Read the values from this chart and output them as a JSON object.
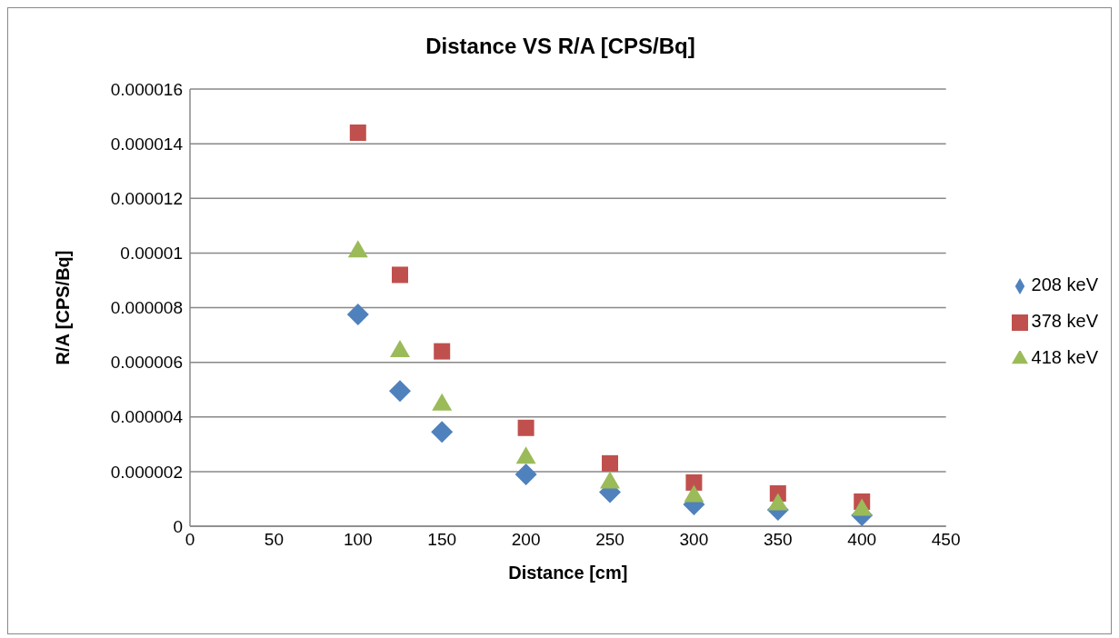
{
  "chart_data": {
    "type": "scatter",
    "title": "Distance VS R/A [CPS/Bq]",
    "xlabel": "Distance [cm]",
    "ylabel": "R/A  [CPS/Bq]",
    "x": [
      100,
      125,
      150,
      200,
      250,
      300,
      350,
      400
    ],
    "series": [
      {
        "name": "208 keV",
        "color": "#4f81bd",
        "marker": "diamond",
        "values": [
          7.75e-06,
          4.95e-06,
          3.45e-06,
          1.9e-06,
          1.25e-06,
          8e-07,
          6e-07,
          4e-07
        ]
      },
      {
        "name": "378 keV",
        "color": "#c0504d",
        "marker": "square",
        "values": [
          1.44e-05,
          9.2e-06,
          6.4e-06,
          3.6e-06,
          2.3e-06,
          1.6e-06,
          1.2e-06,
          9e-07
        ]
      },
      {
        "name": "418 keV",
        "color": "#9bbb59",
        "marker": "triangle",
        "values": [
          1.01e-05,
          6.45e-06,
          4.5e-06,
          2.55e-06,
          1.65e-06,
          1.15e-06,
          8.5e-07,
          6.5e-07
        ]
      }
    ],
    "xlim": [
      0,
      450
    ],
    "xticks": [
      0,
      50,
      100,
      150,
      200,
      250,
      300,
      350,
      400,
      450
    ],
    "ylim": [
      0,
      1.6e-05
    ],
    "yticks": [
      0,
      {
        "value": 2e-06,
        "label": "0.000002"
      },
      {
        "value": 4e-06,
        "label": "0.000004"
      },
      {
        "value": 6e-06,
        "label": "0.000006"
      },
      {
        "value": 8e-06,
        "label": "0.000008"
      },
      {
        "value": 1e-05,
        "label": "0.00001"
      },
      {
        "value": 1.2e-05,
        "label": "0.000012"
      },
      {
        "value": 1.4e-05,
        "label": "0.000014"
      },
      {
        "value": 1.6e-05,
        "label": "0.000016"
      }
    ],
    "grid": "y",
    "legend": "right"
  }
}
